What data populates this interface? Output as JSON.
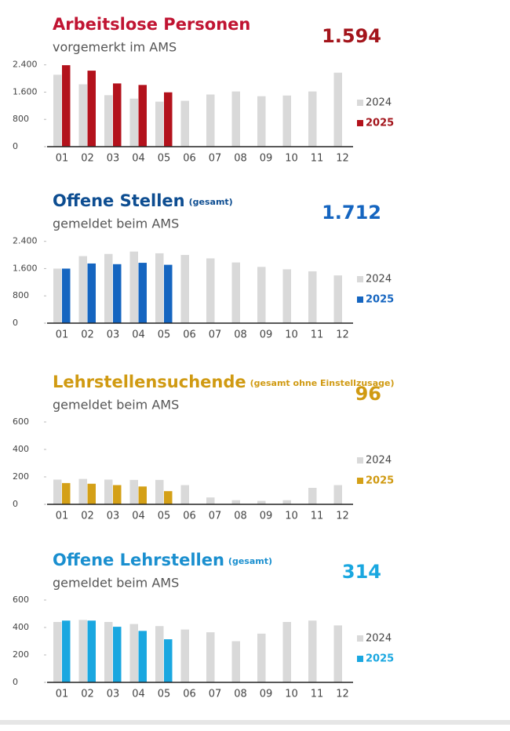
{
  "chart_data": [
    {
      "type": "bar",
      "title": "Arbeitslose Personen",
      "subtitle": "vorgemerkt im AMS",
      "headline": "1.594",
      "title_color": "#c01432",
      "headline_color": "#a3141b",
      "categories": [
        "01",
        "02",
        "03",
        "04",
        "05",
        "06",
        "07",
        "08",
        "09",
        "10",
        "11",
        "12"
      ],
      "series": [
        {
          "name": "2024",
          "color": "#d9d9d9",
          "values": [
            2110,
            1830,
            1510,
            1410,
            1320,
            1345,
            1530,
            1620,
            1480,
            1500,
            1620,
            2170
          ]
        },
        {
          "name": "2025",
          "color": "#b3121c",
          "values": [
            2390,
            2230,
            1855,
            1810,
            1594,
            null,
            null,
            null,
            null,
            null,
            null,
            null
          ]
        }
      ],
      "ylim": [
        0,
        2600
      ],
      "yticks": [
        0,
        800,
        {
          "value": 1600,
          "label": "1.600"
        },
        {
          "value": 2400,
          "label": "2.400"
        }
      ]
    },
    {
      "type": "bar",
      "title": "Offene Stellen",
      "title_note": "(gesamt)",
      "subtitle": "gemeldet beim AMS",
      "headline": "1.712",
      "title_color": "#0d4d91",
      "headline_color": "#1565c0",
      "categories": [
        "01",
        "02",
        "03",
        "04",
        "05",
        "06",
        "07",
        "08",
        "09",
        "10",
        "11",
        "12"
      ],
      "series": [
        {
          "name": "2024",
          "color": "#d9d9d9",
          "values": [
            1600,
            1966,
            2030,
            2100,
            2050,
            2000,
            1900,
            1780,
            1650,
            1580,
            1520,
            1400
          ]
        },
        {
          "name": "2025",
          "color": "#1565c0",
          "values": [
            1600,
            1750,
            1730,
            1770,
            1712,
            null,
            null,
            null,
            null,
            null,
            null,
            null
          ]
        }
      ],
      "ylim": [
        0,
        2600
      ],
      "yticks": [
        0,
        800,
        {
          "value": 1600,
          "label": "1.600"
        },
        {
          "value": 2400,
          "label": "2.400"
        }
      ]
    },
    {
      "type": "bar",
      "title": "Lehrstellensuchende",
      "title_note": "(gesamt ohne Einstellzusage)",
      "subtitle": "gemeldet beim AMS",
      "headline": "96",
      "title_color": "#d09a12",
      "headline_color": "#d09a12",
      "categories": [
        "01",
        "02",
        "03",
        "04",
        "05",
        "06",
        "07",
        "08",
        "09",
        "10",
        "11",
        "12"
      ],
      "series": [
        {
          "name": "2024",
          "color": "#d9d9d9",
          "values": [
            180,
            185,
            180,
            178,
            178,
            140,
            50,
            30,
            25,
            30,
            120,
            140
          ]
        },
        {
          "name": "2025",
          "color": "#d4a017",
          "values": [
            155,
            150,
            140,
            130,
            96,
            null,
            null,
            null,
            null,
            null,
            null,
            null
          ]
        }
      ],
      "ylim": [
        0,
        600
      ],
      "yticks": [
        0,
        200,
        400,
        600
      ]
    },
    {
      "type": "bar",
      "title": "Offene Lehrstellen",
      "title_note": "(gesamt)",
      "subtitle": "gemeldet beim AMS",
      "headline": "314",
      "title_color": "#1a8fcf",
      "headline_color": "#1aa7e0",
      "categories": [
        "01",
        "02",
        "03",
        "04",
        "05",
        "06",
        "07",
        "08",
        "09",
        "10",
        "11",
        "12"
      ],
      "series": [
        {
          "name": "2024",
          "color": "#d9d9d9",
          "values": [
            440,
            455,
            440,
            425,
            410,
            385,
            365,
            300,
            355,
            440,
            450,
            415
          ]
        },
        {
          "name": "2025",
          "color": "#1aa7e0",
          "values": [
            450,
            450,
            405,
            375,
            314,
            null,
            null,
            null,
            null,
            null,
            null,
            null
          ]
        }
      ],
      "ylim": [
        0,
        600
      ],
      "yticks": [
        0,
        200,
        400,
        600
      ]
    }
  ]
}
